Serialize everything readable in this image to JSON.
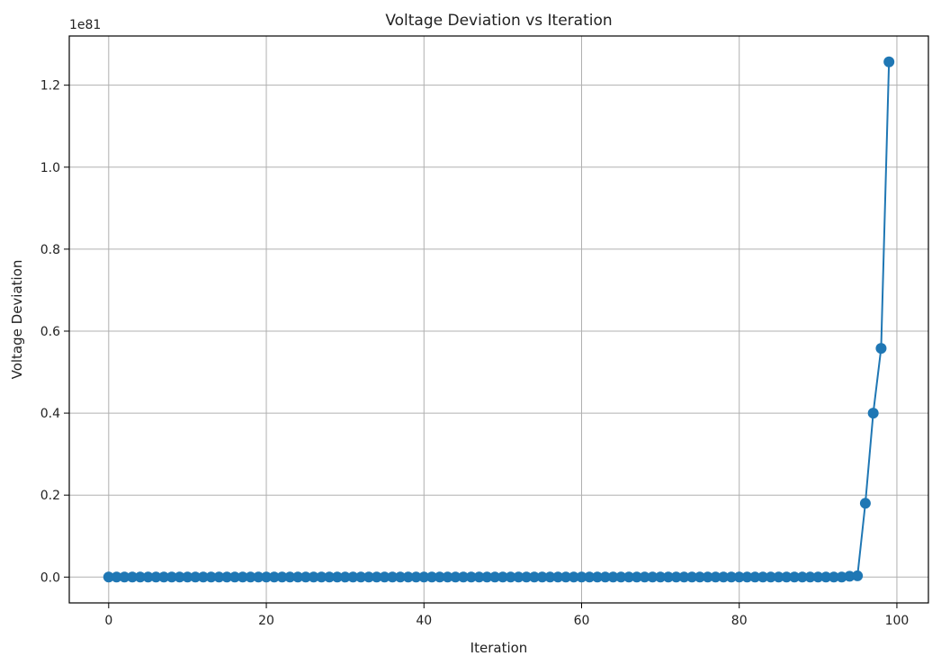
{
  "chart_data": {
    "type": "line",
    "title": "Voltage Deviation vs Iteration",
    "xlabel": "Iteration",
    "ylabel": "Voltage Deviation",
    "y_offset_label": "1e81",
    "xlim": [
      -5,
      104
    ],
    "ylim": [
      -0.063,
      1.32
    ],
    "x_ticks": [
      0,
      20,
      40,
      60,
      80,
      100
    ],
    "x_tick_labels": [
      "0",
      "20",
      "40",
      "60",
      "80",
      "100"
    ],
    "y_ticks": [
      0.0,
      0.2,
      0.4,
      0.6,
      0.8,
      1.0,
      1.2
    ],
    "y_tick_labels": [
      "0.0",
      "0.2",
      "0.4",
      "0.6",
      "0.8",
      "1.0",
      "1.2"
    ],
    "grid": true,
    "marker": "circle",
    "color": "#1f77b4",
    "series": [
      {
        "x": [
          0,
          1,
          2,
          3,
          4,
          5,
          6,
          7,
          8,
          9,
          10,
          11,
          12,
          13,
          14,
          15,
          16,
          17,
          18,
          19,
          20,
          21,
          22,
          23,
          24,
          25,
          26,
          27,
          28,
          29,
          30,
          31,
          32,
          33,
          34,
          35,
          36,
          37,
          38,
          39,
          40,
          41,
          42,
          43,
          44,
          45,
          46,
          47,
          48,
          49,
          50,
          51,
          52,
          53,
          54,
          55,
          56,
          57,
          58,
          59,
          60,
          61,
          62,
          63,
          64,
          65,
          66,
          67,
          68,
          69,
          70,
          71,
          72,
          73,
          74,
          75,
          76,
          77,
          78,
          79,
          80,
          81,
          82,
          83,
          84,
          85,
          86,
          87,
          88,
          89,
          90,
          91,
          92,
          93,
          94,
          95,
          96,
          97,
          98,
          99
        ],
        "values": [
          0,
          0,
          0,
          0,
          0,
          0,
          0,
          0,
          0,
          0,
          0,
          0,
          0,
          0,
          0,
          0,
          0,
          0,
          0,
          0,
          0,
          0,
          0,
          0,
          0,
          0,
          0,
          0,
          0,
          0,
          0,
          0,
          0,
          0,
          0,
          0,
          0,
          0,
          0,
          0,
          0,
          0,
          0,
          0,
          0,
          0,
          0,
          0,
          0,
          0,
          0,
          0,
          0,
          0,
          0,
          0,
          0,
          0,
          0,
          0,
          0,
          0,
          0,
          0,
          0,
          0,
          0,
          0,
          0,
          0,
          0,
          0,
          0,
          0,
          0,
          0,
          0,
          0,
          0,
          0,
          0,
          0,
          0,
          0,
          0,
          0,
          0,
          0,
          0,
          0,
          0,
          0,
          0,
          0,
          0.002,
          0.003,
          0.18,
          0.4,
          0.558,
          1.257
        ]
      }
    ]
  }
}
